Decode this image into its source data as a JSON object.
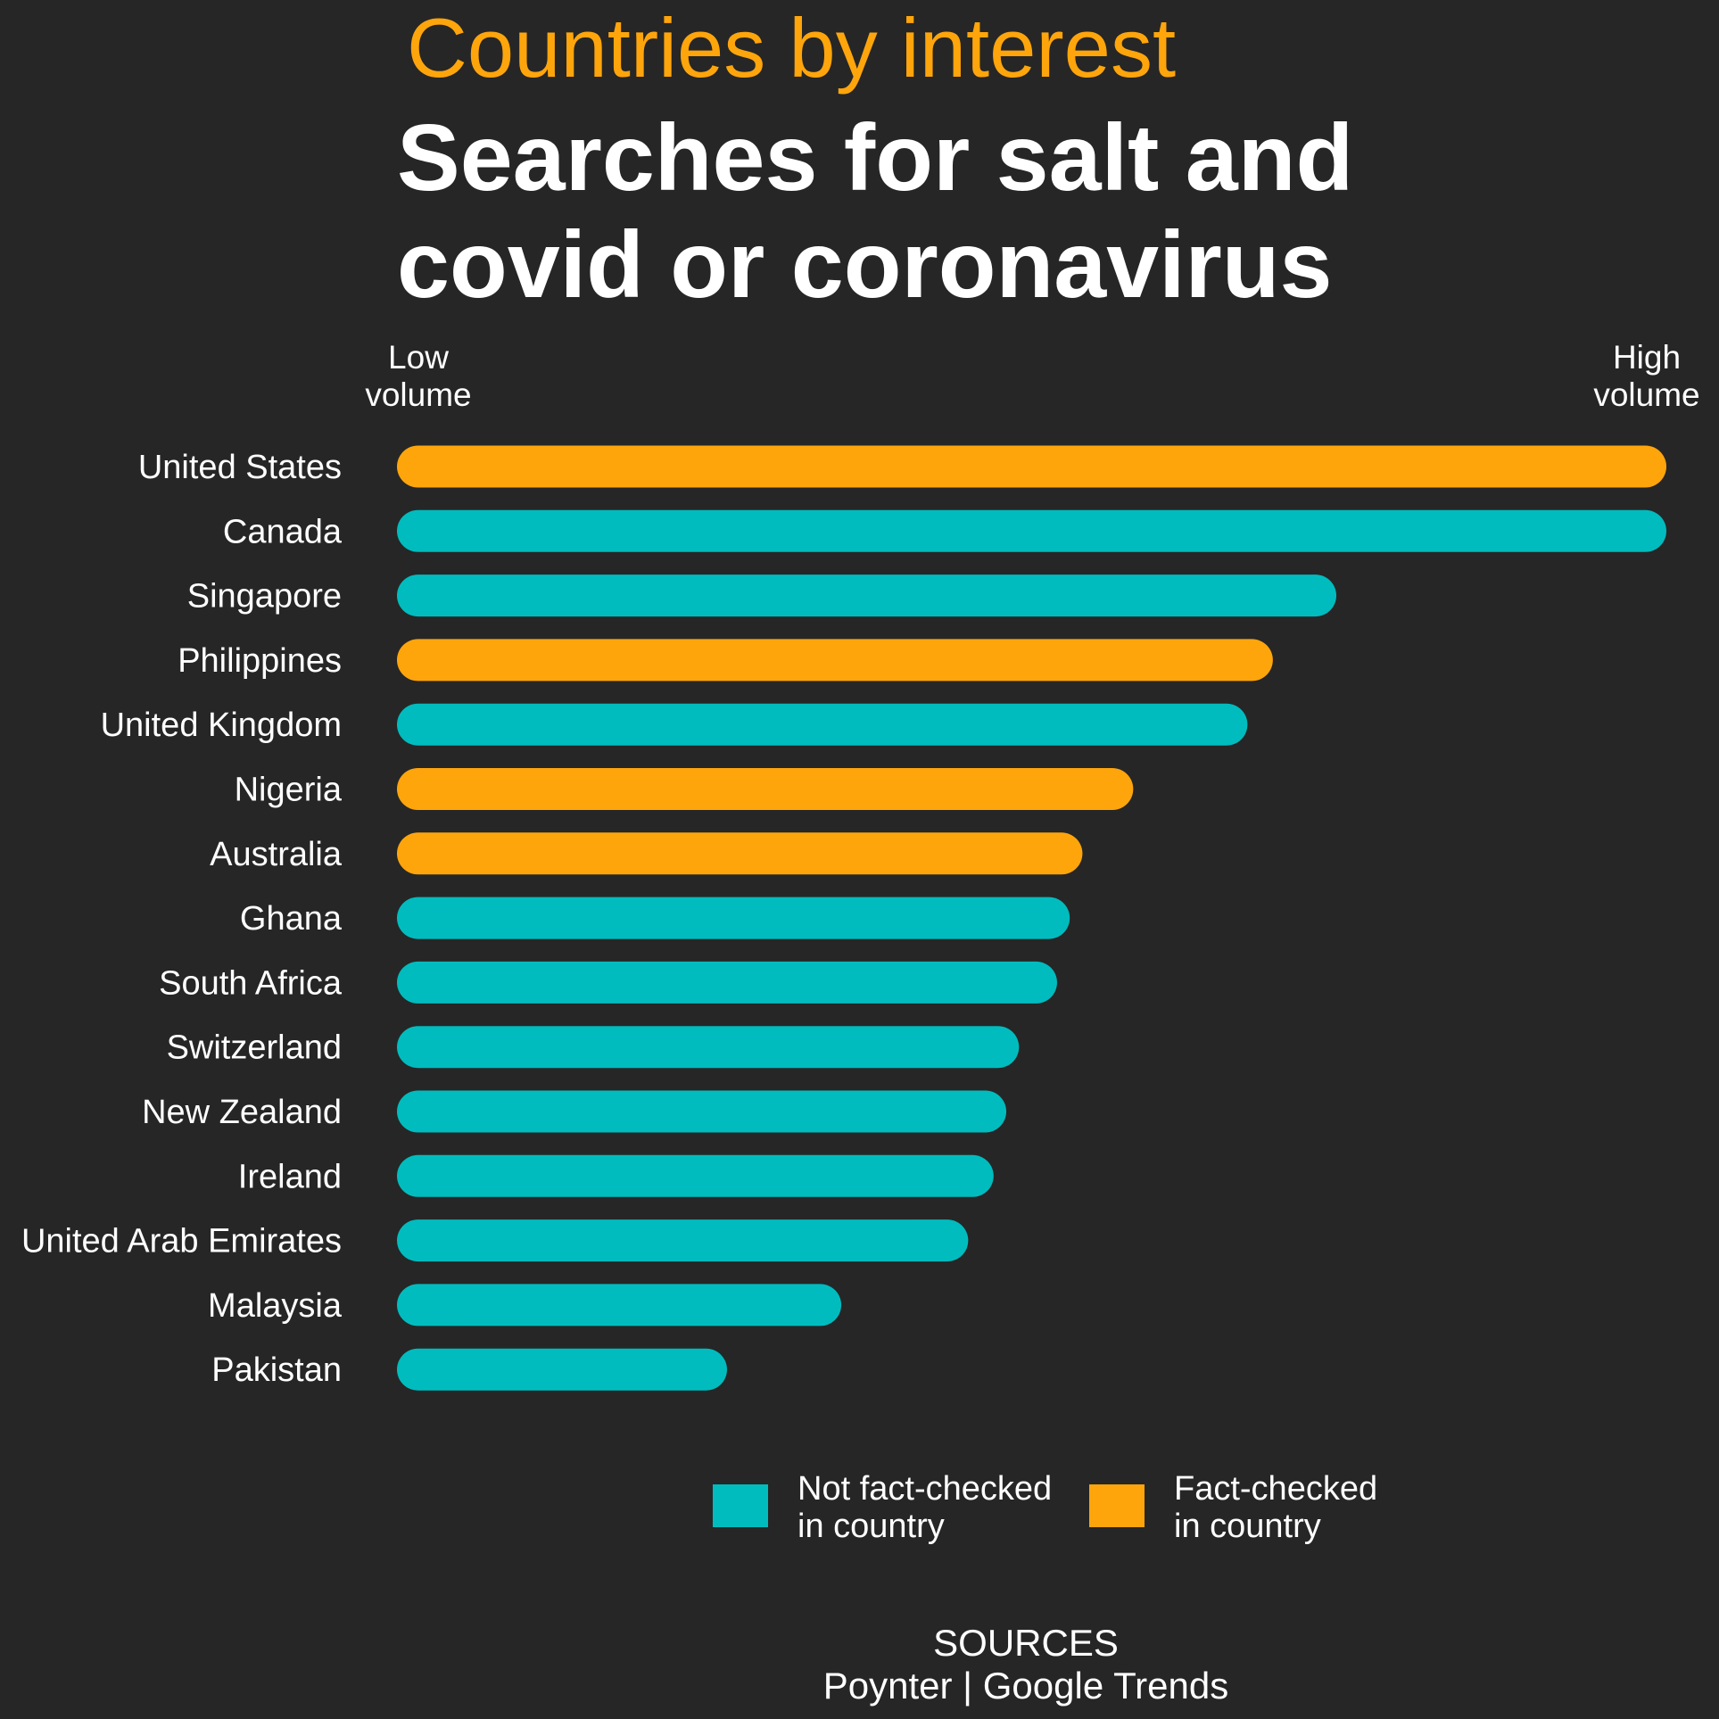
{
  "header": {
    "kicker": "Countries by interest",
    "title_line1": "Searches for salt and",
    "title_line2": "covid or coronavirus"
  },
  "scale": {
    "low_line1": "Low",
    "low_line2": "volume",
    "high_line1": "High",
    "high_line2": "volume"
  },
  "legend": {
    "not_fact_checked_line1": "Not fact-checked",
    "not_fact_checked_line2": "in country",
    "fact_checked_line1": "Fact-checked",
    "fact_checked_line2": "in country"
  },
  "sources": {
    "heading": "SOURCES",
    "text": "Poynter | Google Trends"
  },
  "colors": {
    "background": "#262626",
    "fact_checked": "#ffa50c",
    "not_fact_checked": "#00bcbe",
    "text": "#ffffff"
  },
  "chart_data": {
    "type": "bar",
    "orientation": "horizontal",
    "title": "Searches for salt and covid or coronavirus",
    "subtitle": "Countries by interest",
    "xlabel": "",
    "ylabel": "",
    "xlim": [
      0,
      100
    ],
    "grid": false,
    "legend_position": "bottom",
    "categories": [
      "United States",
      "Canada",
      "Singapore",
      "Philippines",
      "United Kingdom",
      "Nigeria",
      "Australia",
      "Ghana",
      "South Africa",
      "Switzerland",
      "New Zealand",
      "Ireland",
      "United Arab Emirates",
      "Malaysia",
      "Pakistan"
    ],
    "values": [
      100,
      100,
      74,
      69,
      67,
      58,
      54,
      53,
      52,
      49,
      48,
      47,
      45,
      35,
      26
    ],
    "groups": [
      "fact",
      "not",
      "not",
      "fact",
      "not",
      "fact",
      "fact",
      "not",
      "not",
      "not",
      "not",
      "not",
      "not",
      "not",
      "not"
    ],
    "series": [
      {
        "name": "Not fact-checked in country",
        "key": "not",
        "color": "#00bcbe"
      },
      {
        "name": "Fact-checked in country",
        "key": "fact",
        "color": "#ffa50c"
      }
    ]
  }
}
